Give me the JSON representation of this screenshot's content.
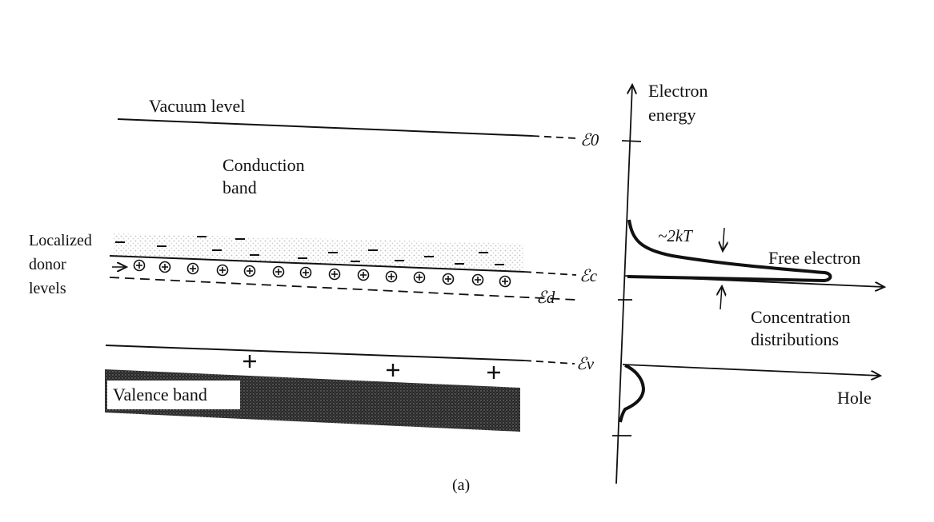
{
  "labels": {
    "vacuum_level": "Vacuum level",
    "conduction_band_l1": "Conduction",
    "conduction_band_l2": "band",
    "localized_l1": "Localized",
    "localized_l2": "donor",
    "localized_l3": "levels",
    "valence_band": "Valence band",
    "electron_energy_l1": "Electron",
    "electron_energy_l2": "energy",
    "free_electron": "Free electron",
    "concentration_l1": "Concentration",
    "concentration_l2": "distributions",
    "hole": "Hole",
    "kt_label": "~2kT",
    "caption": "(a)"
  },
  "energy_levels": {
    "E0": "ℰ0",
    "Ec": "ℰc",
    "Ed": "ℰd",
    "Ev": "ℰv"
  },
  "symbols": {
    "donor": "⊕",
    "electron": "–",
    "hole": "+"
  },
  "colors": {
    "ink": "#111111",
    "band_fill": "#1e1e1e",
    "stipple": "#bfbfbf"
  }
}
